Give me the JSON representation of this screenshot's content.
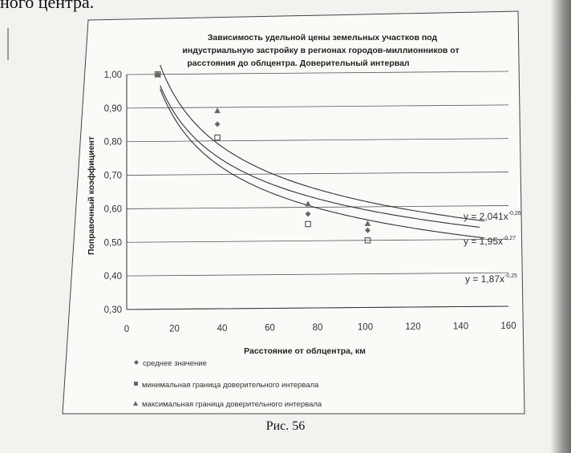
{
  "top_text": "ного центра.",
  "caption": "Рис. 56",
  "chart_data": {
    "type": "scatter",
    "title_lines": [
      "Зависимость удельной цены земельных участков под",
      "индустриальную застройку  в регионах городов-миллионников от",
      "расстояния до облцентра.  Доверительный интервал"
    ],
    "xlabel": "Расстояние от облцентра, км",
    "ylabel": "Поправочный коэффициент",
    "xlim": [
      0,
      160
    ],
    "ylim": [
      0.3,
      1.0
    ],
    "x_ticks": [
      "0",
      "20",
      "40",
      "60",
      "80",
      "100",
      "120",
      "140",
      "160"
    ],
    "y_ticks": [
      "0,30",
      "0,40",
      "0,50",
      "0,60",
      "0,70",
      "0,80",
      "0,90",
      "1,00"
    ],
    "grid": "horizontal",
    "series": [
      {
        "name": "среднее значение",
        "marker": "diamond",
        "x": [
          13,
          38,
          76,
          101
        ],
        "y": [
          1.0,
          0.85,
          0.58,
          0.53
        ]
      },
      {
        "name": "минимальная граница доверительного интервала",
        "marker": "square",
        "x": [
          13,
          38,
          76,
          101
        ],
        "y": [
          1.0,
          0.81,
          0.55,
          0.5
        ]
      },
      {
        "name": "максимальная граница доверительного интервала",
        "marker": "triangle",
        "x": [
          13,
          38,
          76,
          101
        ],
        "y": [
          1.0,
          0.89,
          0.61,
          0.55
        ]
      }
    ],
    "trendlines": [
      {
        "equation": "y = 2,041x",
        "exponent": "-0,26",
        "coef": 2.041,
        "power": -0.26
      },
      {
        "equation": "y = 1,95x",
        "exponent": "-0,27",
        "coef": 1.95,
        "power": -0.27
      },
      {
        "equation": "y = 1,87x",
        "exponent": "-0,25",
        "coef": 1.87,
        "power": -0.25
      }
    ],
    "legend_position": "bottom-left",
    "colors": {
      "markers": "#666666",
      "lines": "#333333",
      "grid": "#555555"
    }
  }
}
